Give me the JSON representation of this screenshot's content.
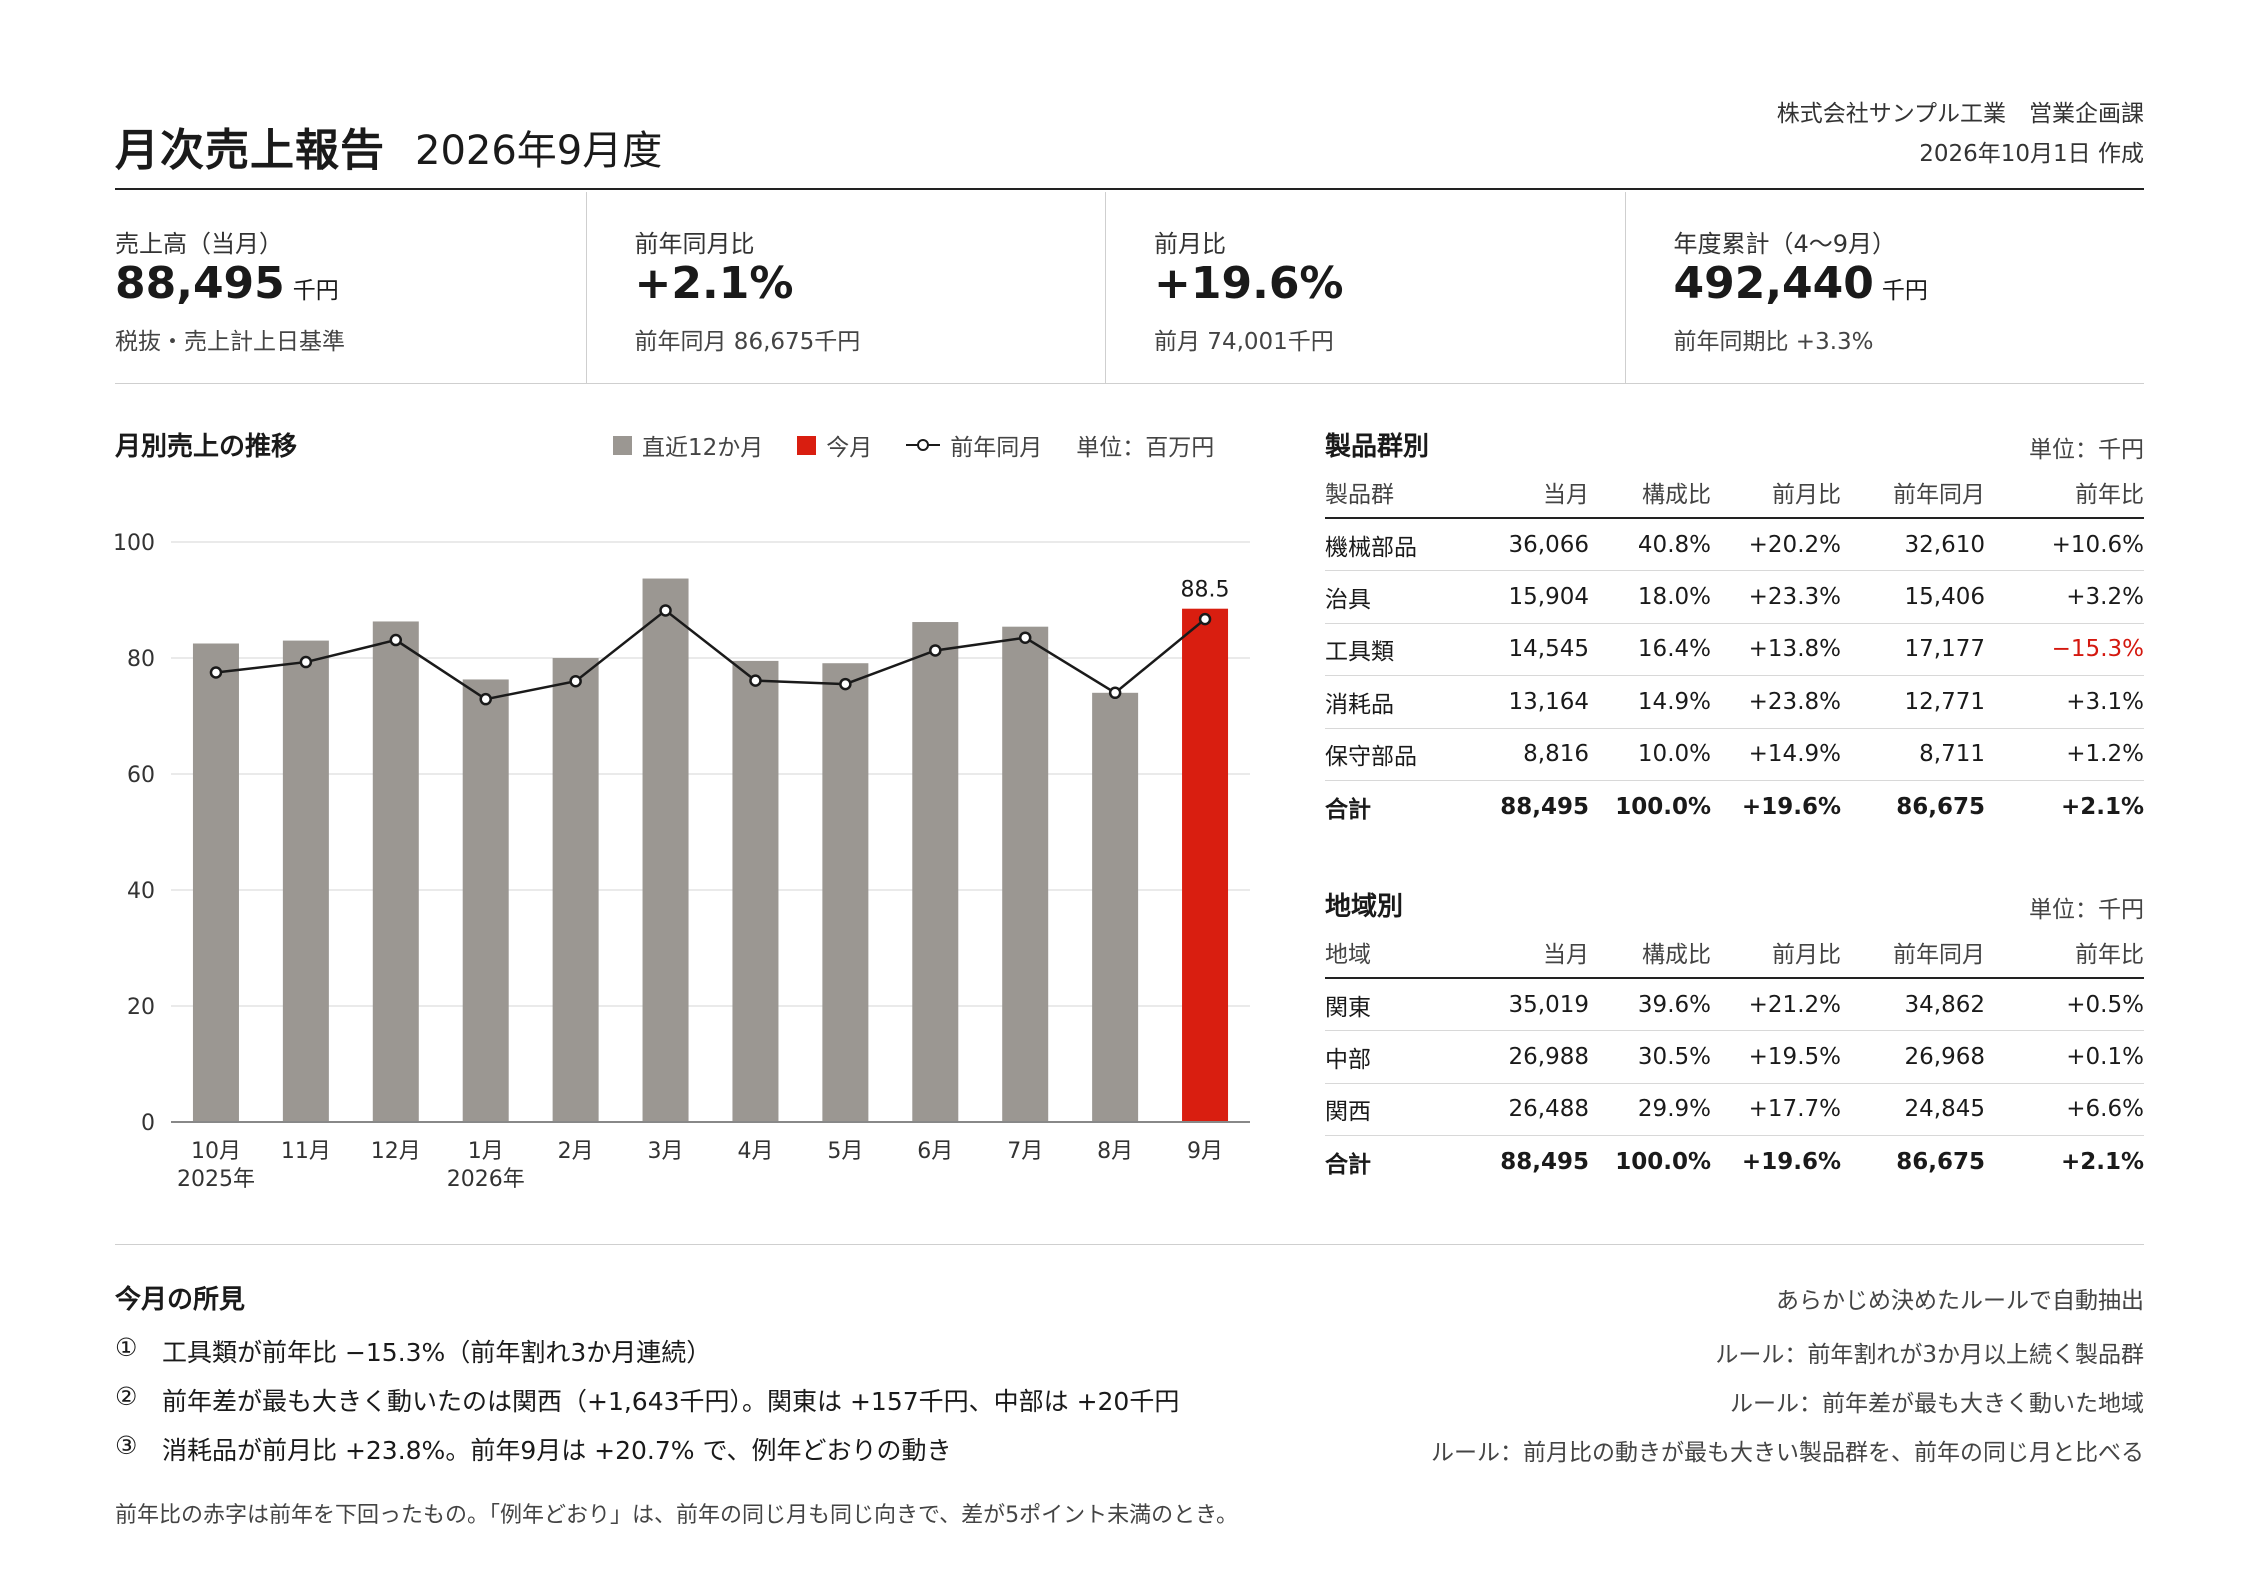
{
  "header": {
    "title": "月次売上報告",
    "period": "2026年9月度",
    "organization": "株式会社サンプル工業　営業企画課",
    "created": "2026年10月1日 作成"
  },
  "kpis": [
    {
      "label": "売上高（当月）",
      "value": "88,495",
      "unit": "千円",
      "sub": "税抜・売上計上日基準"
    },
    {
      "label": "前年同月比",
      "value": "+2.1%",
      "unit": "",
      "sub": "前年同月 86,675千円"
    },
    {
      "label": "前月比",
      "value": "+19.6%",
      "unit": "",
      "sub": "前月 74,001千円"
    },
    {
      "label": "年度累計（4〜9月）",
      "value": "492,440",
      "unit": "千円",
      "sub": "前年同期比 +3.3%"
    }
  ],
  "chart_section": {
    "title": "月別売上の推移",
    "legend": {
      "recent": "直近12か月",
      "current": "今月",
      "prior": "前年同月",
      "unit": "単位：百万円"
    }
  },
  "chart_data": {
    "type": "bar",
    "categories": [
      "10月",
      "11月",
      "12月",
      "1月",
      "2月",
      "3月",
      "4月",
      "5月",
      "6月",
      "7月",
      "8月",
      "9月"
    ],
    "year_labels": {
      "0": "2025年",
      "3": "2026年"
    },
    "series": [
      {
        "name": "直近12か月",
        "type": "bar",
        "values": [
          82.5,
          83.0,
          86.3,
          76.3,
          80.0,
          93.7,
          79.5,
          79.1,
          86.2,
          85.4,
          74.0,
          88.5
        ]
      },
      {
        "name": "前年同月",
        "type": "line",
        "values": [
          77.5,
          79.3,
          83.1,
          72.9,
          76.0,
          88.2,
          76.1,
          75.5,
          81.3,
          83.5,
          74.0,
          86.7
        ]
      }
    ],
    "highlight_index": 11,
    "highlight_label": "88.5",
    "ylim": [
      0,
      100
    ],
    "yticks": [
      0,
      20,
      40,
      60,
      80,
      100
    ],
    "grid": true,
    "colors": {
      "bar": "#9b9792",
      "highlight": "#d91e10",
      "line": "#1a1a1a",
      "grid": "#e3e3e3",
      "axis": "#888888"
    }
  },
  "product_table": {
    "title": "製品群別",
    "unit": "単位：千円",
    "headers": [
      "製品群",
      "当月",
      "構成比",
      "前月比",
      "前年同月",
      "前年比"
    ],
    "rows": [
      [
        "機械部品",
        "36,066",
        "40.8%",
        "+20.2%",
        "32,610",
        "+10.6%"
      ],
      [
        "治具",
        "15,904",
        "18.0%",
        "+23.3%",
        "15,406",
        "+3.2%"
      ],
      [
        "工具類",
        "14,545",
        "16.4%",
        "+13.8%",
        "17,177",
        "−15.3%"
      ],
      [
        "消耗品",
        "13,164",
        "14.9%",
        "+23.8%",
        "12,771",
        "+3.1%"
      ],
      [
        "保守部品",
        "8,816",
        "10.0%",
        "+14.9%",
        "8,711",
        "+1.2%"
      ]
    ],
    "total": [
      "合計",
      "88,495",
      "100.0%",
      "+19.6%",
      "86,675",
      "+2.1%"
    ]
  },
  "region_table": {
    "title": "地域別",
    "unit": "単位：千円",
    "headers": [
      "地域",
      "当月",
      "構成比",
      "前月比",
      "前年同月",
      "前年比"
    ],
    "rows": [
      [
        "関東",
        "35,019",
        "39.6%",
        "+21.2%",
        "34,862",
        "+0.5%"
      ],
      [
        "中部",
        "26,988",
        "30.5%",
        "+19.5%",
        "26,968",
        "+0.1%"
      ],
      [
        "関西",
        "26,488",
        "29.9%",
        "+17.7%",
        "24,845",
        "+6.6%"
      ]
    ],
    "total": [
      "合計",
      "88,495",
      "100.0%",
      "+19.6%",
      "86,675",
      "+2.1%"
    ]
  },
  "findings": {
    "title": "今月の所見",
    "note": "あらかじめ決めたルールで自動抽出",
    "items": [
      {
        "num": "①",
        "text": "工具類が前年比 −15.3%（前年割れ3か月連続）",
        "rule": "ルール：前年割れが3か月以上続く製品群"
      },
      {
        "num": "②",
        "text": "前年差が最も大きく動いたのは関西（+1,643千円）。関東は +157千円、中部は +20千円",
        "rule": "ルール：前年差が最も大きく動いた地域"
      },
      {
        "num": "③",
        "text": "消耗品が前月比 +23.8%。前年9月は +20.7% で、例年どおりの動き",
        "rule": "ルール：前月比の動きが最も大きい製品群を、前年の同じ月と比べる"
      }
    ],
    "footnote": "前年比の赤字は前年を下回ったもの。「例年どおり」は、前年の同じ月も同じ向きで、差が5ポイント未満のとき。"
  }
}
